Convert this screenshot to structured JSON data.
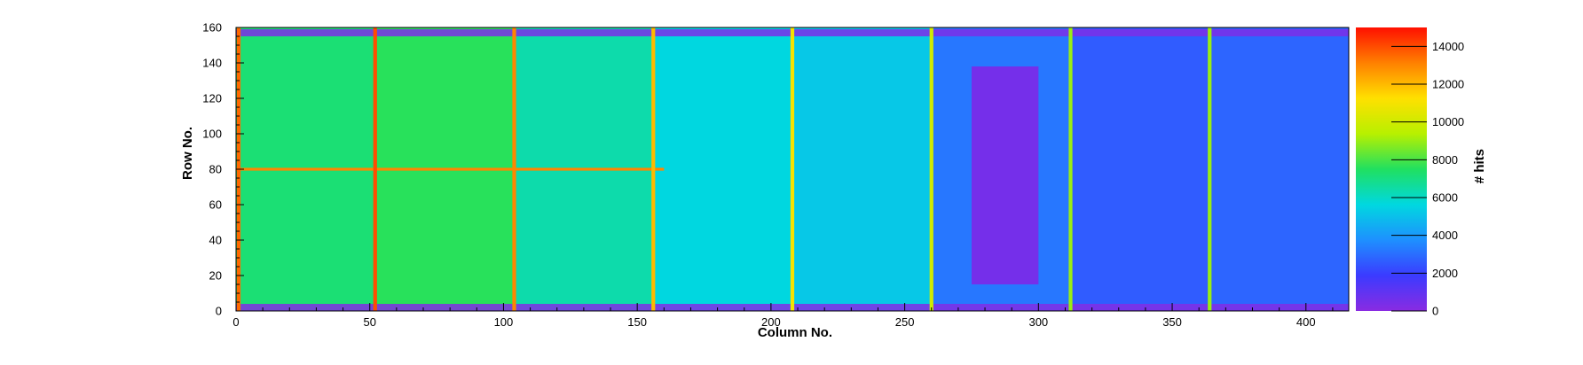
{
  "chart_data": {
    "type": "heatmap",
    "title": "",
    "xlabel": "Column No.",
    "ylabel": "Row No.",
    "zlabel": "# hits",
    "xlim": [
      0,
      416
    ],
    "ylim": [
      0,
      160
    ],
    "zlim": [
      0,
      15000
    ],
    "x_ticks": [
      0,
      50,
      100,
      150,
      200,
      250,
      300,
      350,
      400
    ],
    "y_ticks": [
      0,
      20,
      40,
      60,
      80,
      100,
      120,
      140,
      160
    ],
    "z_ticks": [
      0,
      2000,
      4000,
      6000,
      8000,
      10000,
      12000,
      14000
    ],
    "colormap": [
      "#8a2be2",
      "#3b3bff",
      "#1e90ff",
      "#00d8e0",
      "#20e060",
      "#b8f000",
      "#ffe000",
      "#ff8000",
      "#ff1000"
    ],
    "column_blocks": [
      {
        "x": [
          0,
          52
        ],
        "hits": 7200
      },
      {
        "x": [
          52,
          104
        ],
        "hits": 7600
      },
      {
        "x": [
          104,
          156
        ],
        "hits": 6400
      },
      {
        "x": [
          156,
          208
        ],
        "hits": 5600
      },
      {
        "x": [
          208,
          260
        ],
        "hits": 5200
      },
      {
        "x": [
          260,
          312
        ],
        "hits": 3200
      },
      {
        "x": [
          312,
          364
        ],
        "hits": 2600
      },
      {
        "x": [
          364,
          416
        ],
        "hits": 2800
      }
    ],
    "hot_columns": [
      {
        "x": 1,
        "hits": 13500
      },
      {
        "x": 52,
        "hits": 14000
      },
      {
        "x": 104,
        "hits": 13000
      },
      {
        "x": 156,
        "hits": 12000
      },
      {
        "x": 208,
        "hits": 11000
      },
      {
        "x": 260,
        "hits": 10000
      },
      {
        "x": 312,
        "hits": 9000
      },
      {
        "x": 364,
        "hits": 9000
      }
    ],
    "hot_row": {
      "y": 80,
      "x": [
        0,
        160
      ],
      "hits": 13000
    },
    "low_region": {
      "x": [
        275,
        300
      ],
      "y": [
        15,
        138
      ],
      "hits": 500
    },
    "pad_rows": [
      {
        "y": [
          0,
          4
        ],
        "hits": 200
      },
      {
        "y": [
          155,
          159
        ],
        "hits": 300
      }
    ]
  }
}
